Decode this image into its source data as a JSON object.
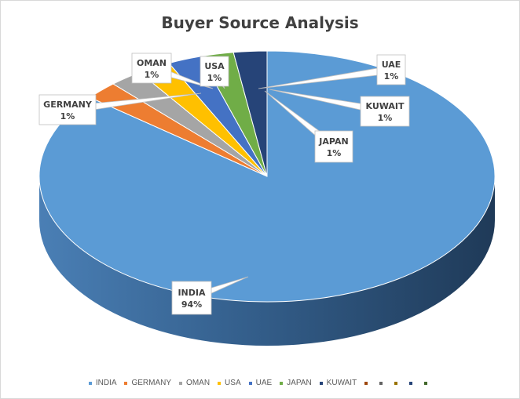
{
  "chart_data": {
    "type": "pie",
    "title": "Buyer Source Analysis",
    "categories": [
      "INDIA",
      "GERMANY",
      "OMAN",
      "USA",
      "UAE",
      "JAPAN",
      "KUWAIT"
    ],
    "values": [
      94,
      1,
      1,
      1,
      1,
      1,
      1
    ],
    "percent_labels": [
      "94%",
      "1%",
      "1%",
      "1%",
      "1%",
      "1%",
      "1%"
    ],
    "colors": [
      "#5b9bd5",
      "#ed7d31",
      "#a5a5a5",
      "#ffc000",
      "#4472c4",
      "#70ad47",
      "#264478"
    ],
    "legend_position": "bottom",
    "legend_extra_swatches": [
      "#9e480e",
      "#636363",
      "#997300",
      "#264478",
      "#43682b"
    ],
    "style": "3d"
  }
}
